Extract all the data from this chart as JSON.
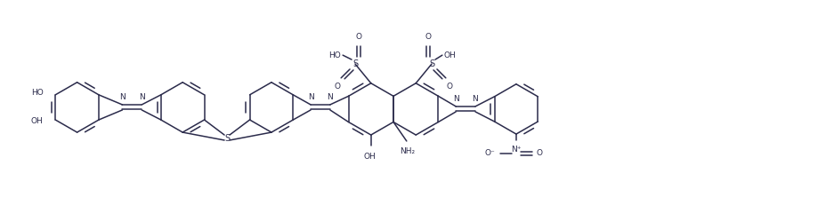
{
  "line_color": "#2b2b4b",
  "bg_color": "#ffffff",
  "font_size": 6.5,
  "line_width": 1.1,
  "figsize": [
    9.29,
    2.31
  ],
  "dpi": 100,
  "xlim": [
    0,
    9.29
  ],
  "ylim": [
    0,
    2.31
  ]
}
